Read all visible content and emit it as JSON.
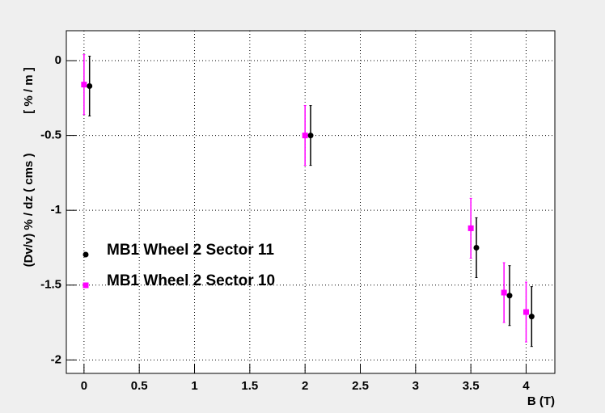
{
  "chart_data": {
    "type": "scatter",
    "y_label": "(Dv/v) % / dz ( cms )",
    "y_unit_label": "[ % / m ]",
    "x_label": "B (T)",
    "xlim": [
      -0.16,
      4.26
    ],
    "ylim": [
      -2.09,
      0.2
    ],
    "xticks": [
      0,
      0.5,
      1,
      1.5,
      2,
      2.5,
      3,
      3.5,
      4
    ],
    "yticks": [
      0,
      -0.5,
      -1,
      -1.5,
      -2
    ],
    "grid": true,
    "legend": "left",
    "series": [
      {
        "name": "MB1 Wheel 2 Sector 11",
        "color": "#000000",
        "marker": "circle",
        "x": [
          0.05,
          2.05,
          3.55,
          3.85,
          4.05
        ],
        "values": [
          -0.17,
          -0.5,
          -1.25,
          -1.57,
          -1.71
        ],
        "errors": [
          0.2,
          0.2,
          0.2,
          0.2,
          0.2
        ]
      },
      {
        "name": "MB1 Wheel 2 Sector 10",
        "color": "#ff00ff",
        "marker": "square",
        "x": [
          0,
          2,
          3.5,
          3.8,
          4.0
        ],
        "values": [
          -0.16,
          -0.5,
          -1.12,
          -1.55,
          -1.68
        ],
        "errors": [
          0.2,
          0.2,
          0.2,
          0.2,
          0.2
        ]
      }
    ]
  }
}
